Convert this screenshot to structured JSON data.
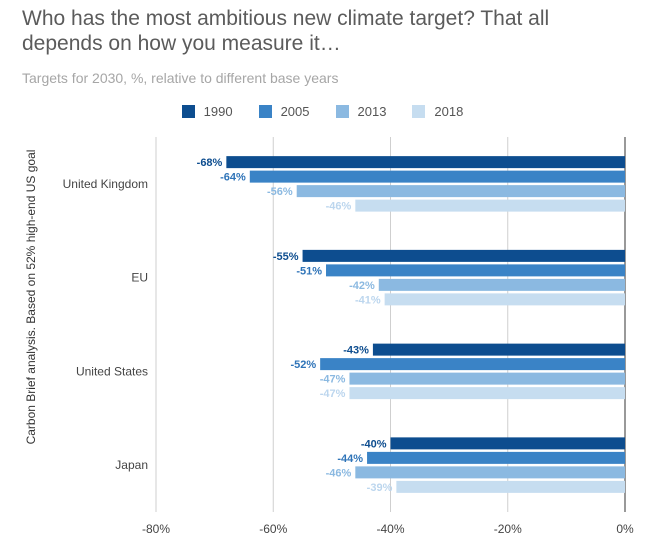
{
  "title": "Who has the most ambitious new climate target? That all depends on how you measure it…",
  "subtitle": "Targets for 2030, %, relative to different base years",
  "colors": {
    "series": [
      "#0d4d8f",
      "#3a83c6",
      "#8bb9e1",
      "#c6ddf0"
    ],
    "labels": [
      "#0d4d8f",
      "#2f74b8",
      "#8bb9e1",
      "#bcd6ee"
    ],
    "grid": "#cfcfcf",
    "axis_text": "#444444"
  },
  "chart_data": {
    "type": "bar",
    "orientation": "horizontal",
    "title": "Who has the most ambitious new climate target? That all depends on how you measure it…",
    "subtitle": "Targets for 2030, %, relative to different base years",
    "ylabel": "Carbon Brief analysis. Based on 52% high-end US goal",
    "xlabel": "",
    "xlim": [
      -80,
      0
    ],
    "x_ticks": [
      -80,
      -60,
      -40,
      -20,
      0
    ],
    "x_tick_labels": [
      "-80%",
      "-60%",
      "-40%",
      "-20%",
      "0%"
    ],
    "legend_position": "top",
    "categories": [
      "United Kingdom",
      "EU",
      "United States",
      "Japan"
    ],
    "series": [
      {
        "name": "1990",
        "values": [
          -68,
          -55,
          -43,
          -40
        ],
        "labels": [
          "-68%",
          "-55%",
          "-43%",
          "-40%"
        ]
      },
      {
        "name": "2005",
        "values": [
          -64,
          -51,
          -52,
          -44
        ],
        "labels": [
          "-64%",
          "-51%",
          "-52%",
          "-44%"
        ]
      },
      {
        "name": "2013",
        "values": [
          -56,
          -42,
          -47,
          -46
        ],
        "labels": [
          "-56%",
          "-42%",
          "-47%",
          "-46%"
        ]
      },
      {
        "name": "2018",
        "values": [
          -46,
          -41,
          -47,
          -39
        ],
        "labels": [
          "-46%",
          "-41%",
          "-47%",
          "-39%"
        ]
      }
    ]
  }
}
